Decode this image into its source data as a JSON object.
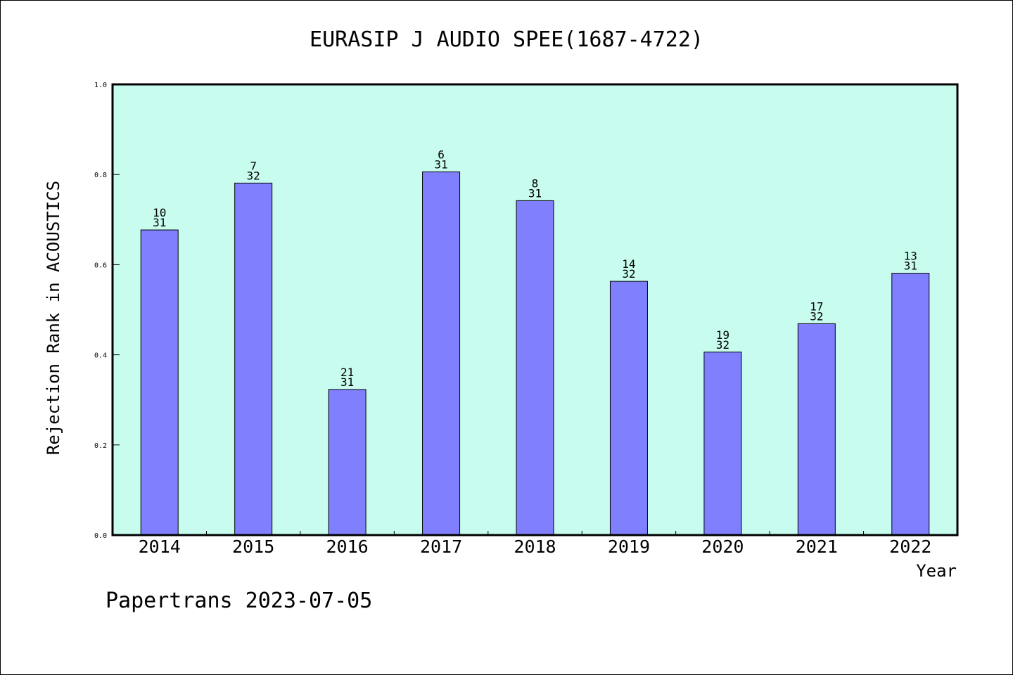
{
  "colors": {
    "plot_background": "#c8fcee",
    "bar_fill": "#8080ff",
    "bar_stroke": "#000000",
    "axis": "#000000",
    "text": "#000000"
  },
  "footer_text": "Papertrans 2023-07-05",
  "chart_data": {
    "type": "bar",
    "title": "EURASIP J AUDIO SPEE(1687-4722)",
    "xlabel": "Year",
    "ylabel": "Rejection Rank in ACOUSTICS",
    "ylim": [
      0,
      1.0
    ],
    "yticks": [
      "0.0",
      "0.2",
      "0.4",
      "0.6",
      "0.8",
      "1.0"
    ],
    "grid": false,
    "categories": [
      "2014",
      "2015",
      "2016",
      "2017",
      "2018",
      "2019",
      "2020",
      "2021",
      "2022"
    ],
    "values": [
      0.677,
      0.781,
      0.323,
      0.806,
      0.742,
      0.563,
      0.406,
      0.469,
      0.581
    ],
    "data_labels": [
      {
        "rank": "10",
        "total": "31"
      },
      {
        "rank": "7",
        "total": "32"
      },
      {
        "rank": "21",
        "total": "31"
      },
      {
        "rank": "6",
        "total": "31"
      },
      {
        "rank": "8",
        "total": "31"
      },
      {
        "rank": "14",
        "total": "32"
      },
      {
        "rank": "19",
        "total": "32"
      },
      {
        "rank": "17",
        "total": "32"
      },
      {
        "rank": "13",
        "total": "31"
      }
    ]
  }
}
